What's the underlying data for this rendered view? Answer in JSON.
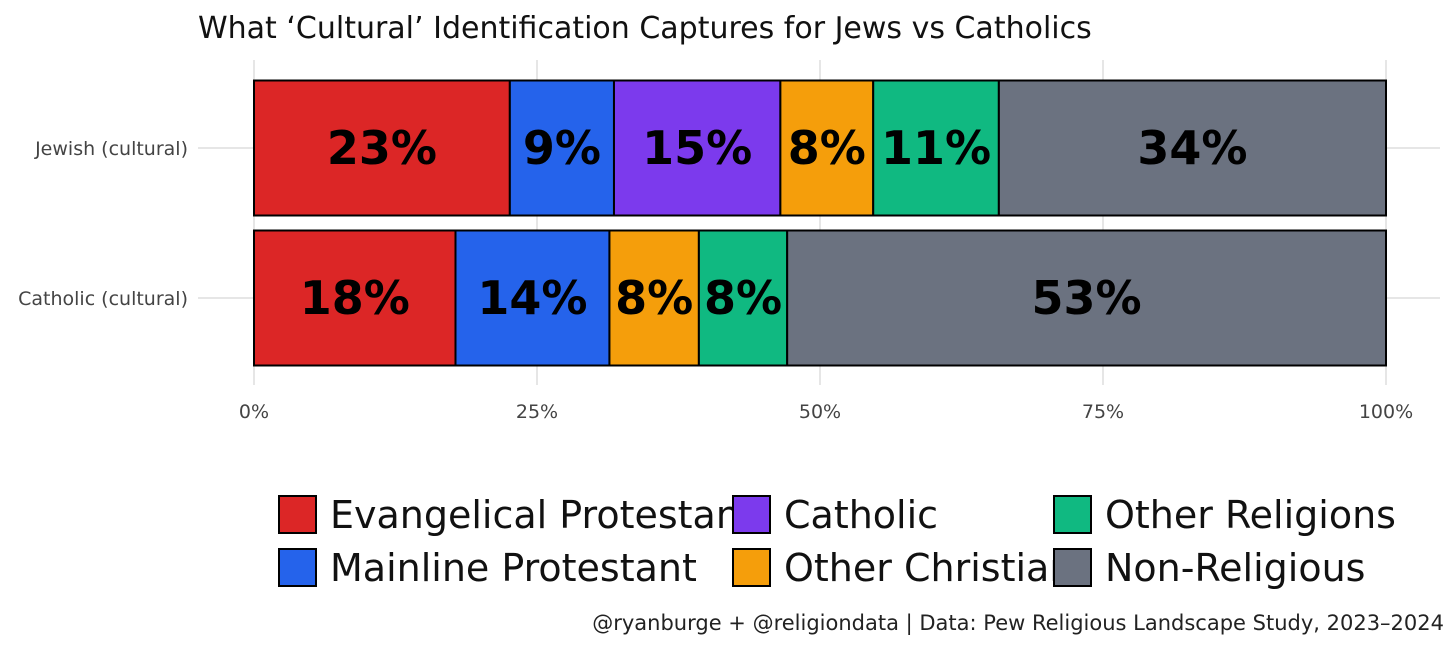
{
  "chart_data": {
    "type": "bar",
    "orientation": "horizontal",
    "stacked": true,
    "normalized": true,
    "title": "What ‘Cultural’ Identification Captures for Jews vs Catholics",
    "categories": [
      "Jewish (cultural)",
      "Catholic (cultural)"
    ],
    "xlim": [
      0,
      1
    ],
    "xticks": [
      0,
      0.25,
      0.5,
      0.75,
      1
    ],
    "xtick_labels": [
      "0%",
      "25%",
      "50%",
      "75%",
      "100%"
    ],
    "grid": true,
    "legend_position": "bottom",
    "series": [
      {
        "name": "Evangelical Protestant",
        "color": "#dc2626",
        "values": [
          0.226,
          0.178
        ],
        "labels": [
          "23%",
          "18%"
        ]
      },
      {
        "name": "Mainline Protestant",
        "color": "#2563eb",
        "values": [
          0.092,
          0.136
        ],
        "labels": [
          "9%",
          "14%"
        ]
      },
      {
        "name": "Catholic",
        "color": "#7c3aed",
        "values": [
          0.147,
          0
        ],
        "labels": [
          "15%",
          ""
        ]
      },
      {
        "name": "Other Christian",
        "color": "#f59e0b",
        "values": [
          0.082,
          0.079
        ],
        "labels": [
          "8%",
          "8%"
        ]
      },
      {
        "name": "Other Religions",
        "color": "#10b981",
        "values": [
          0.111,
          0.078
        ],
        "labels": [
          "11%",
          "8%"
        ]
      },
      {
        "name": "Non-Religious",
        "color": "#6b7280",
        "values": [
          0.342,
          0.529
        ],
        "labels": [
          "34%",
          "53%"
        ]
      }
    ],
    "caption": "@ryanburge + @religiondata | Data: Pew Religious Landscape Study, 2023–2024"
  }
}
